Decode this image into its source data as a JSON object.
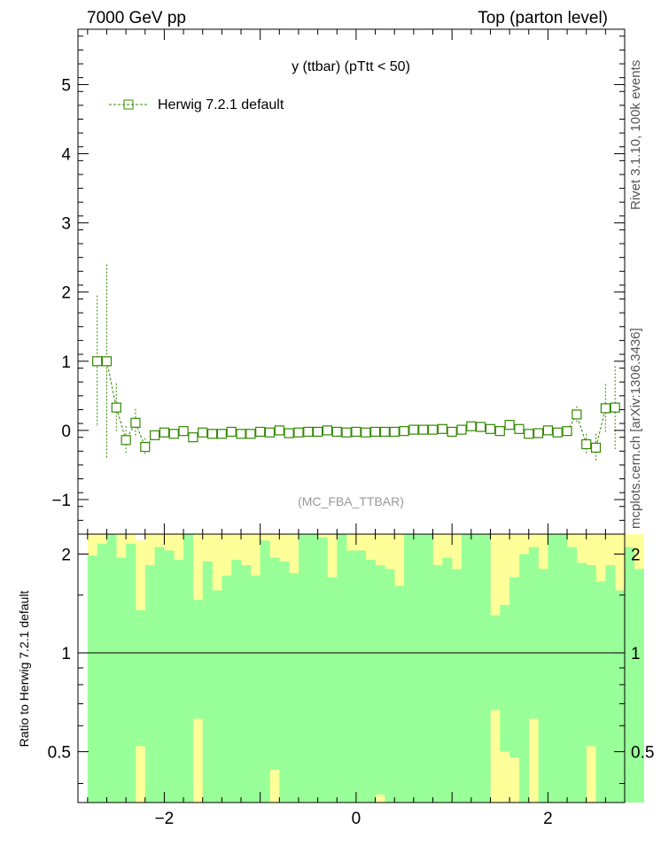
{
  "header": {
    "left": "7000 GeV pp",
    "right": "Top (parton level)"
  },
  "side_labels": {
    "rivet": "Rivet 3.1.10,  100k events",
    "mcplots": "mcplots.cern.ch [arXiv:1306.3436]"
  },
  "colors": {
    "series": "#338800",
    "band_inner": "#99ff99",
    "band_outer": "#ffff99"
  },
  "chart_data": [
    {
      "type": "scatter",
      "title": "y (ttbar) (pTtt < 50)",
      "watermark": "(MC_FBA_TTBAR)",
      "xlabel": "",
      "ylabel": "",
      "xlim": [
        -2.9,
        2.8
      ],
      "ylim": [
        -1.5,
        5.8
      ],
      "grid": false,
      "legend": "top-left",
      "x_ticks": [
        -2,
        0,
        2
      ],
      "y_ticks": [
        -1,
        0,
        1,
        2,
        3,
        4,
        5
      ],
      "series": [
        {
          "name": "Herwig 7.2.1 default",
          "marker": "open-square",
          "x": [
            -2.7,
            -2.6,
            -2.5,
            -2.4,
            -2.3,
            -2.2,
            -2.1,
            -2.0,
            -1.9,
            -1.8,
            -1.7,
            -1.6,
            -1.5,
            -1.4,
            -1.3,
            -1.2,
            -1.1,
            -1.0,
            -0.9,
            -0.8,
            -0.7,
            -0.6,
            -0.5,
            -0.4,
            -0.3,
            -0.2,
            -0.1,
            0.0,
            0.1,
            0.2,
            0.3,
            0.4,
            0.5,
            0.6,
            0.7,
            0.8,
            0.9,
            1.0,
            1.1,
            1.2,
            1.3,
            1.4,
            1.5,
            1.6,
            1.7,
            1.8,
            1.9,
            2.0,
            2.1,
            2.2,
            2.3,
            2.4,
            2.5,
            2.6,
            2.7
          ],
          "y": [
            1.0,
            1.0,
            0.33,
            -0.14,
            0.11,
            -0.24,
            -0.07,
            -0.03,
            -0.05,
            -0.01,
            -0.1,
            -0.03,
            -0.05,
            -0.05,
            -0.02,
            -0.05,
            -0.05,
            -0.02,
            -0.03,
            0.0,
            -0.04,
            -0.03,
            -0.02,
            -0.02,
            0.0,
            -0.02,
            -0.03,
            -0.02,
            -0.03,
            -0.02,
            -0.02,
            -0.02,
            -0.01,
            0.01,
            0.01,
            0.01,
            0.02,
            -0.02,
            0.01,
            0.06,
            0.05,
            0.02,
            -0.01,
            0.08,
            0.02,
            -0.05,
            -0.04,
            0.0,
            -0.03,
            -0.01,
            0.23,
            -0.2,
            -0.25,
            0.32,
            0.33
          ],
          "yerr": [
            0.95,
            1.4,
            0.35,
            0.2,
            0.2,
            0.13,
            0.06,
            0.04,
            0.05,
            0.03,
            0.04,
            0.03,
            0.03,
            0.03,
            0.03,
            0.03,
            0.03,
            0.03,
            0.03,
            0.03,
            0.03,
            0.03,
            0.03,
            0.03,
            0.03,
            0.03,
            0.03,
            0.03,
            0.03,
            0.03,
            0.03,
            0.03,
            0.03,
            0.03,
            0.03,
            0.03,
            0.03,
            0.03,
            0.03,
            0.04,
            0.04,
            0.04,
            0.04,
            0.04,
            0.04,
            0.04,
            0.04,
            0.05,
            0.05,
            0.06,
            0.12,
            0.15,
            0.2,
            0.35,
            0.6
          ]
        }
      ]
    },
    {
      "type": "bar",
      "title": "",
      "xlabel": "",
      "ylabel": "Ratio to Herwig 7.2.1 default",
      "xlim": [
        -2.9,
        2.8
      ],
      "ylim": [
        0.35,
        2.3
      ],
      "y_scale": "log",
      "x_ticks": [
        -2,
        0,
        2
      ],
      "y_ticks": [
        0.5,
        1,
        2
      ],
      "reference_line": 1,
      "bin_edges_start": -2.8,
      "bin_width": 0.1,
      "band_inner_lower": [
        0.35,
        0.35,
        0.35,
        0.35,
        0.35,
        0.52,
        0.35,
        0.35,
        0.35,
        0.35,
        0.35,
        0.63,
        0.35,
        0.35,
        0.35,
        0.35,
        0.35,
        0.35,
        0.35,
        0.44,
        0.35,
        0.35,
        0.35,
        0.35,
        0.35,
        0.35,
        0.35,
        0.35,
        0.35,
        0.35,
        0.37,
        0.35,
        0.35,
        0.35,
        0.35,
        0.35,
        0.35,
        0.35,
        0.35,
        0.35,
        0.35,
        0.35,
        0.67,
        0.5,
        0.48,
        0.35,
        0.63,
        0.35,
        0.35,
        0.35,
        0.35,
        0.35,
        0.52,
        0.35,
        0.35,
        0.35,
        0.35,
        0.35
      ],
      "band_inner_upper": [
        1.98,
        2.15,
        2.3,
        1.95,
        2.15,
        1.35,
        1.85,
        2.1,
        2.05,
        1.92,
        2.3,
        1.45,
        1.9,
        1.55,
        1.72,
        1.92,
        1.85,
        1.72,
        2.2,
        1.95,
        1.9,
        1.75,
        2.3,
        2.3,
        2.25,
        1.7,
        2.3,
        2.05,
        2.05,
        1.92,
        1.85,
        1.8,
        1.6,
        2.3,
        2.3,
        2.3,
        1.85,
        1.95,
        1.8,
        2.3,
        2.3,
        2.3,
        1.3,
        1.4,
        1.7,
        2.0,
        2.1,
        1.8,
        2.3,
        2.3,
        2.1,
        1.88,
        1.85,
        1.65,
        1.85,
        1.55,
        2.1,
        1.8
      ],
      "band_outer_lower": [
        0.35,
        0.35,
        0.35,
        0.35,
        0.35,
        0.35,
        0.35,
        0.35,
        0.35,
        0.35,
        0.35,
        0.35,
        0.35,
        0.35,
        0.35,
        0.35,
        0.35,
        0.35,
        0.35,
        0.35,
        0.35,
        0.35,
        0.35,
        0.35,
        0.35,
        0.35,
        0.35,
        0.35,
        0.35,
        0.35,
        0.35,
        0.35,
        0.35,
        0.35,
        0.35,
        0.35,
        0.35,
        0.35,
        0.35,
        0.35,
        0.35,
        0.35,
        0.35,
        0.35,
        0.35,
        0.35,
        0.35,
        0.35,
        0.35,
        0.35,
        0.35,
        0.35,
        0.35,
        0.35,
        0.35,
        0.35,
        0.35,
        0.35
      ],
      "band_outer_upper": [
        2.3,
        2.3,
        2.3,
        2.3,
        2.3,
        2.2,
        2.3,
        2.3,
        2.3,
        2.3,
        2.3,
        2.3,
        2.3,
        2.3,
        2.3,
        2.3,
        2.3,
        2.3,
        2.3,
        2.3,
        2.3,
        2.3,
        2.3,
        2.3,
        2.3,
        2.3,
        2.3,
        2.3,
        2.3,
        2.3,
        2.3,
        2.3,
        2.3,
        2.3,
        2.3,
        2.3,
        2.3,
        2.3,
        2.3,
        2.3,
        2.3,
        2.3,
        2.3,
        2.3,
        2.3,
        2.3,
        2.3,
        2.3,
        2.3,
        2.3,
        2.3,
        2.3,
        2.3,
        2.3,
        2.3,
        2.3,
        2.3,
        2.3
      ]
    }
  ]
}
